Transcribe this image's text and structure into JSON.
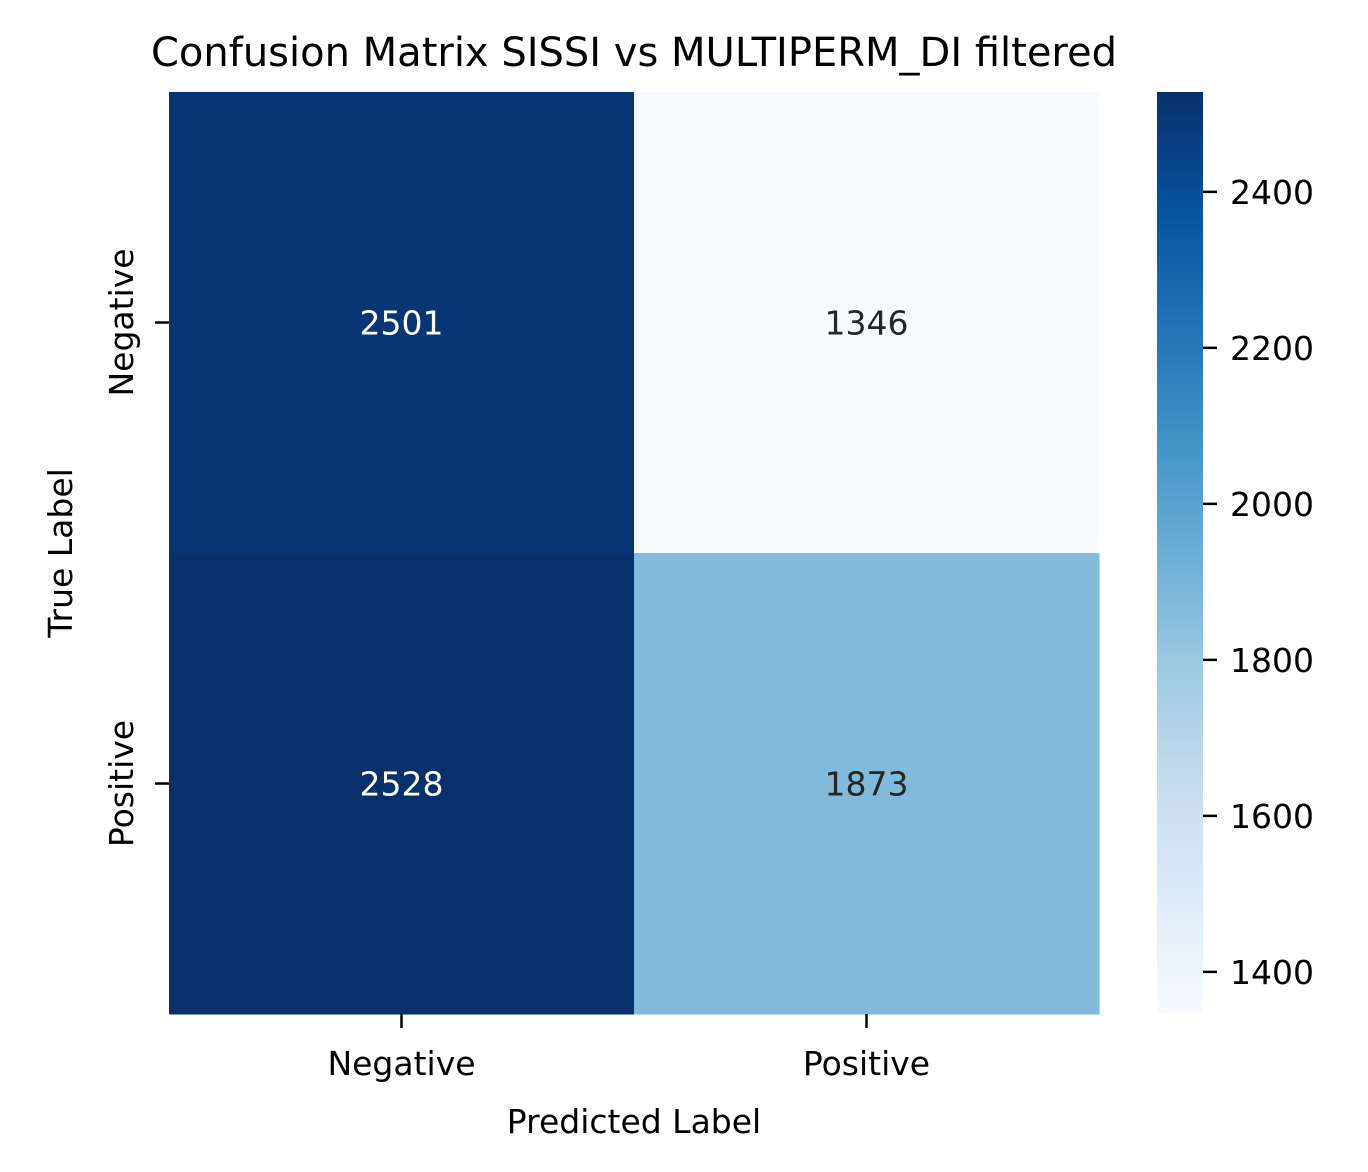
{
  "chart_data": {
    "type": "heatmap",
    "title": "Confusion Matrix SISSI vs MULTIPERM_DI filtered",
    "xlabel": "Predicted Label",
    "ylabel": "True Label",
    "x_categories": [
      "Negative",
      "Positive"
    ],
    "y_categories": [
      "Negative",
      "Positive"
    ],
    "values": [
      [
        2501,
        1346
      ],
      [
        2528,
        1873
      ]
    ],
    "colormap": "Blues",
    "colorbar": {
      "vmin": 1346,
      "vmax": 2528,
      "ticks": [
        1400,
        1600,
        1800,
        2000,
        2200,
        2400
      ]
    },
    "colors": {
      "low": "#f7fbff",
      "high": "#08306b",
      "text_on_dark": "#ffffff",
      "text_on_light": "#262626"
    }
  }
}
